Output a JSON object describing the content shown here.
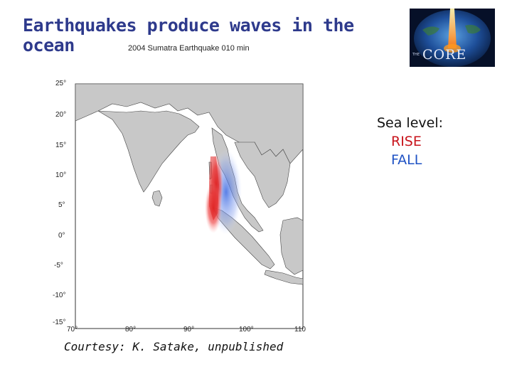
{
  "slide": {
    "title": "Earthquakes produce waves in the ocean",
    "credit": "Courtesy: K. Satake, unpublished"
  },
  "logo": {
    "text": "CORE",
    "small": "THE"
  },
  "map": {
    "title": "2004 Sumatra Earthquake 010 min",
    "lat_ticks": [
      "25°",
      "20°",
      "15°",
      "10°",
      "5°",
      "0°",
      "-5°",
      "-10°",
      "-15°"
    ],
    "lon_ticks": [
      "70°",
      "80°",
      "90°",
      "100°",
      "110"
    ]
  },
  "legend": {
    "title": "Sea level:",
    "rise": "RISE",
    "fall": "FALL",
    "rise_color": "#c8141c",
    "fall_color": "#1f52c4"
  }
}
